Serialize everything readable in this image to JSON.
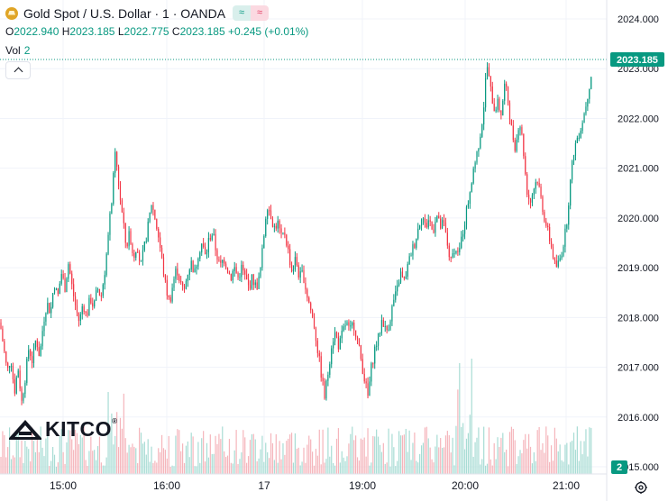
{
  "header": {
    "title": "Gold Spot / U.S. Dollar · 1 · OANDA",
    "pill_left": "≈",
    "pill_right": "≈"
  },
  "ohlc": {
    "o_label": "O",
    "o": "2022.940",
    "h_label": "H",
    "h": "2023.185",
    "l_label": "L",
    "l": "2022.775",
    "c_label": "C",
    "c": "2023.185",
    "change": "+0.245 (+0.01%)"
  },
  "vol": {
    "label": "Vol",
    "value": "2"
  },
  "logo": {
    "text": "KITCO",
    "reg": "®"
  },
  "colors": {
    "up": "#089981",
    "down": "#f23645",
    "up_vol": "#a8dcd4",
    "down_vol": "#f5b5bb",
    "axis_text": "#131722",
    "grid": "#f0f3fa"
  },
  "chart_data": {
    "type": "candlestick",
    "symbol": "Gold Spot / U.S. Dollar",
    "interval": "1",
    "source": "OANDA",
    "ylim": [
      2014.9,
      2024.3
    ],
    "y_ticks": [
      "2024.000",
      "2023.000",
      "2022.000",
      "2021.000",
      "2020.000",
      "2019.000",
      "2018.000",
      "2017.000",
      "2016.000",
      "2015.000"
    ],
    "y_tick_values": [
      2024,
      2023,
      2022,
      2021,
      2020,
      2019,
      2018,
      2017,
      2016,
      2015
    ],
    "x_ticks": [
      "15:00",
      "16:00",
      "17",
      "19:00",
      "20:00",
      "21:00"
    ],
    "last_price": "2023.185",
    "last_volume": "2",
    "price_path": [
      [
        0,
        2017.9
      ],
      [
        4,
        2017.4
      ],
      [
        8,
        2016.9
      ],
      [
        12,
        2017.2
      ],
      [
        16,
        2016.5
      ],
      [
        20,
        2017.0
      ],
      [
        24,
        2016.3
      ],
      [
        28,
        2016.8
      ],
      [
        32,
        2017.4
      ],
      [
        36,
        2017.1
      ],
      [
        40,
        2017.6
      ],
      [
        44,
        2017.2
      ],
      [
        48,
        2017.9
      ],
      [
        52,
        2018.3
      ],
      [
        56,
        2018.1
      ],
      [
        60,
        2018.7
      ],
      [
        64,
        2018.4
      ],
      [
        68,
        2018.9
      ],
      [
        72,
        2018.6
      ],
      [
        76,
        2019.1
      ],
      [
        80,
        2018.6
      ],
      [
        84,
        2018.2
      ],
      [
        88,
        2017.9
      ],
      [
        92,
        2018.3
      ],
      [
        96,
        2018.0
      ],
      [
        100,
        2018.4
      ],
      [
        104,
        2018.2
      ],
      [
        108,
        2018.6
      ],
      [
        112,
        2018.4
      ],
      [
        116,
        2018.9
      ],
      [
        120,
        2019.6
      ],
      [
        124,
        2020.4
      ],
      [
        128,
        2021.3
      ],
      [
        132,
        2020.6
      ],
      [
        136,
        2020.0
      ],
      [
        140,
        2019.4
      ],
      [
        144,
        2019.7
      ],
      [
        148,
        2019.2
      ],
      [
        152,
        2019.5
      ],
      [
        156,
        2019.0
      ],
      [
        160,
        2019.4
      ],
      [
        164,
        2019.8
      ],
      [
        168,
        2020.3
      ],
      [
        172,
        2020.0
      ],
      [
        176,
        2019.6
      ],
      [
        180,
        2019.1
      ],
      [
        184,
        2018.6
      ],
      [
        188,
        2018.3
      ],
      [
        192,
        2018.7
      ],
      [
        196,
        2019.0
      ],
      [
        200,
        2018.7
      ],
      [
        204,
        2018.5
      ],
      [
        208,
        2018.9
      ],
      [
        212,
        2019.1
      ],
      [
        216,
        2018.9
      ],
      [
        220,
        2019.3
      ],
      [
        224,
        2019.5
      ],
      [
        228,
        2019.2
      ],
      [
        232,
        2019.6
      ],
      [
        236,
        2019.7
      ],
      [
        240,
        2019.3
      ],
      [
        244,
        2019.0
      ],
      [
        248,
        2019.2
      ],
      [
        252,
        2019.0
      ],
      [
        256,
        2018.8
      ],
      [
        260,
        2019.0
      ],
      [
        264,
        2018.8
      ],
      [
        268,
        2019.0
      ],
      [
        272,
        2018.8
      ],
      [
        276,
        2018.6
      ],
      [
        280,
        2018.8
      ],
      [
        284,
        2018.6
      ],
      [
        288,
        2018.8
      ],
      [
        292,
        2019.5
      ],
      [
        296,
        2020.3
      ],
      [
        300,
        2020.1
      ],
      [
        304,
        2019.8
      ],
      [
        308,
        2019.9
      ],
      [
        312,
        2019.6
      ],
      [
        316,
        2019.7
      ],
      [
        320,
        2019.3
      ],
      [
        324,
        2018.9
      ],
      [
        328,
        2019.2
      ],
      [
        332,
        2018.8
      ],
      [
        336,
        2018.9
      ],
      [
        340,
        2018.5
      ],
      [
        344,
        2018.2
      ],
      [
        348,
        2017.9
      ],
      [
        352,
        2017.4
      ],
      [
        356,
        2016.9
      ],
      [
        360,
        2016.4
      ],
      [
        364,
        2016.9
      ],
      [
        368,
        2017.5
      ],
      [
        372,
        2017.7
      ],
      [
        376,
        2017.4
      ],
      [
        380,
        2017.7
      ],
      [
        384,
        2017.9
      ],
      [
        388,
        2017.7
      ],
      [
        392,
        2017.9
      ],
      [
        396,
        2017.6
      ],
      [
        400,
        2017.2
      ],
      [
        404,
        2016.8
      ],
      [
        408,
        2016.4
      ],
      [
        412,
        2017.0
      ],
      [
        416,
        2017.4
      ],
      [
        420,
        2017.6
      ],
      [
        424,
        2018.0
      ],
      [
        428,
        2017.7
      ],
      [
        432,
        2017.9
      ],
      [
        436,
        2018.3
      ],
      [
        440,
        2018.5
      ],
      [
        444,
        2018.9
      ],
      [
        448,
        2018.7
      ],
      [
        452,
        2019.0
      ],
      [
        456,
        2019.3
      ],
      [
        460,
        2019.5
      ],
      [
        464,
        2019.8
      ],
      [
        468,
        2020.1
      ],
      [
        472,
        2019.8
      ],
      [
        476,
        2020.0
      ],
      [
        480,
        2019.7
      ],
      [
        484,
        2020.1
      ],
      [
        488,
        2019.8
      ],
      [
        492,
        2019.9
      ],
      [
        496,
        2019.5
      ],
      [
        500,
        2019.1
      ],
      [
        504,
        2019.4
      ],
      [
        508,
        2019.2
      ],
      [
        512,
        2019.6
      ],
      [
        516,
        2020.0
      ],
      [
        520,
        2020.4
      ],
      [
        524,
        2020.9
      ],
      [
        528,
        2021.2
      ],
      [
        532,
        2021.6
      ],
      [
        536,
        2022.1
      ],
      [
        540,
        2023.1
      ],
      [
        544,
        2022.6
      ],
      [
        548,
        2022.2
      ],
      [
        552,
        2022.3
      ],
      [
        556,
        2022.1
      ],
      [
        560,
        2022.7
      ],
      [
        564,
        2022.3
      ],
      [
        568,
        2021.7
      ],
      [
        572,
        2021.4
      ],
      [
        576,
        2022.0
      ],
      [
        580,
        2021.5
      ],
      [
        584,
        2020.6
      ],
      [
        588,
        2020.3
      ],
      [
        592,
        2020.6
      ],
      [
        596,
        2020.8
      ],
      [
        600,
        2020.4
      ],
      [
        604,
        2020.0
      ],
      [
        608,
        2019.7
      ],
      [
        612,
        2019.4
      ],
      [
        616,
        2019.0
      ],
      [
        620,
        2019.1
      ],
      [
        624,
        2019.4
      ],
      [
        628,
        2019.8
      ],
      [
        632,
        2020.6
      ],
      [
        636,
        2021.3
      ],
      [
        640,
        2021.6
      ],
      [
        644,
        2021.8
      ],
      [
        648,
        2022.1
      ],
      [
        652,
        2022.5
      ],
      [
        656,
        2022.9
      ],
      [
        659,
        2023.185
      ]
    ]
  }
}
